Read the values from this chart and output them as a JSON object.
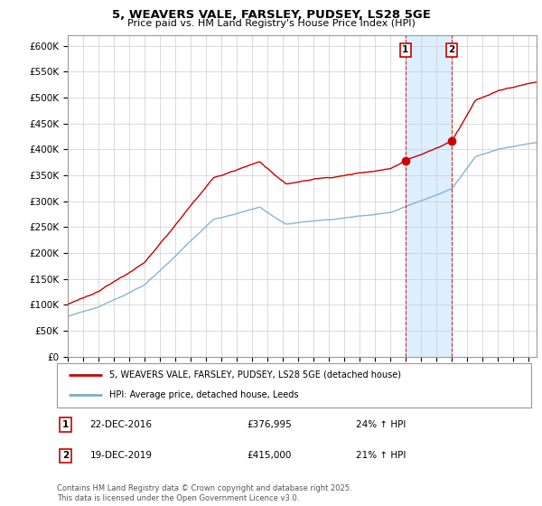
{
  "title": "5, WEAVERS VALE, FARSLEY, PUDSEY, LS28 5GE",
  "subtitle": "Price paid vs. HM Land Registry's House Price Index (HPI)",
  "footnote": "Contains HM Land Registry data © Crown copyright and database right 2025.\nThis data is licensed under the Open Government Licence v3.0.",
  "legend_line1": "5, WEAVERS VALE, FARSLEY, PUDSEY, LS28 5GE (detached house)",
  "legend_line2": "HPI: Average price, detached house, Leeds",
  "annotation1_label": "1",
  "annotation1_date": "22-DEC-2016",
  "annotation1_price": "£376,995",
  "annotation1_hpi": "24% ↑ HPI",
  "annotation2_label": "2",
  "annotation2_date": "19-DEC-2019",
  "annotation2_price": "£415,000",
  "annotation2_hpi": "21% ↑ HPI",
  "sale1_x": 2016.97,
  "sale1_y": 376995,
  "sale2_x": 2019.97,
  "sale2_y": 415000,
  "xmin": 1995,
  "xmax": 2025.5,
  "ymin": 0,
  "ymax": 620000,
  "yticks": [
    0,
    50000,
    100000,
    150000,
    200000,
    250000,
    300000,
    350000,
    400000,
    450000,
    500000,
    550000,
    600000
  ],
  "red_color": "#cc0000",
  "blue_color": "#7aaecc",
  "shade_color": "#ddeeff",
  "vline_color": "#cc0000",
  "grid_color": "#cccccc",
  "bg_color": "#ffffff"
}
